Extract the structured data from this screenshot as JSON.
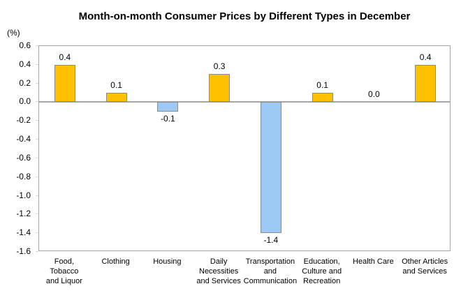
{
  "chart_data": {
    "type": "bar",
    "title": "Month-on-month Consumer Prices by Different Types in December",
    "unit_label": "(%)",
    "categories": [
      "Food, Tobacco and Liquor",
      "Clothing",
      "Housing",
      "Daily Necessities and Services",
      "Transportation and Communication",
      "Education, Culture and Recreation",
      "Health Care",
      "Other Articles and Services"
    ],
    "category_label_lines": [
      [
        "Food,",
        "Tobacco",
        "and Liquor"
      ],
      [
        "Clothing"
      ],
      [
        "Housing"
      ],
      [
        "Daily",
        "Necessities",
        "and Services"
      ],
      [
        "Transportation",
        "and",
        "Communication"
      ],
      [
        "Education,",
        "Culture and",
        "Recreation"
      ],
      [
        "Health Care"
      ],
      [
        "Other Articles",
        "and Services"
      ]
    ],
    "values": [
      0.4,
      0.1,
      -0.1,
      0.3,
      -1.4,
      0.1,
      0.0,
      0.4
    ],
    "value_labels": [
      "0.4",
      "0.1",
      "-0.1",
      "0.3",
      "-1.4",
      "0.1",
      "0.0",
      "0.4"
    ],
    "ylim": [
      -1.6,
      0.6
    ],
    "yticks": [
      "0.6",
      "0.4",
      "0.2",
      "0.0",
      "-0.2",
      "-0.4",
      "-0.6",
      "-0.8",
      "-1.0",
      "-1.2",
      "-1.4",
      "-1.6"
    ],
    "legend": "none",
    "grid": "off",
    "colors": {
      "positive_bar": "#FFC000",
      "negative_bar": "#9DC9F5",
      "bar_border": "#8C8C8C",
      "axis_line": "#A6A6A6",
      "tick_mark": "#D9D9D9",
      "text": "#000000"
    }
  }
}
